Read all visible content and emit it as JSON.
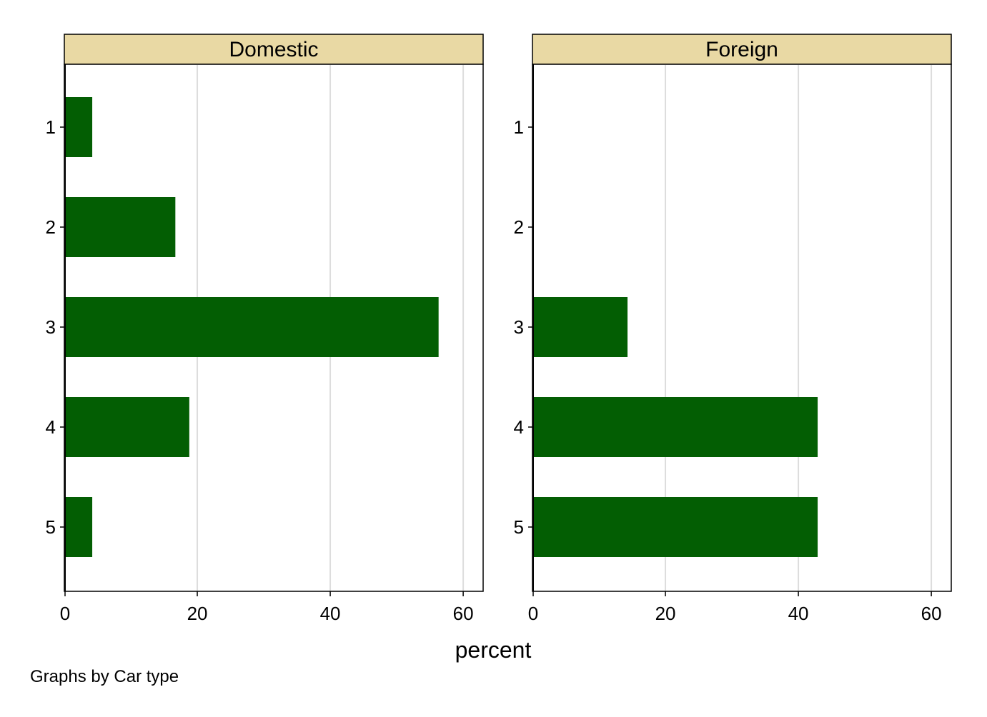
{
  "chart_data": {
    "type": "bar",
    "orientation": "horizontal",
    "categories": [
      "1",
      "2",
      "3",
      "4",
      "5"
    ],
    "panels": [
      {
        "title": "Domestic",
        "values": [
          4.2,
          16.7,
          56.3,
          18.8,
          4.2
        ]
      },
      {
        "title": "Foreign",
        "values": [
          0,
          0,
          14.3,
          42.9,
          42.9
        ]
      }
    ],
    "xlabel": "percent",
    "xlim": [
      0,
      63
    ],
    "xticks": [
      0,
      20,
      40,
      60
    ],
    "grid": true,
    "note": "Graphs by Car type",
    "colors": {
      "bar": "#035e03",
      "panel_header": "#e9d9a4",
      "grid": "#dddddd",
      "axis": "#000000"
    }
  }
}
